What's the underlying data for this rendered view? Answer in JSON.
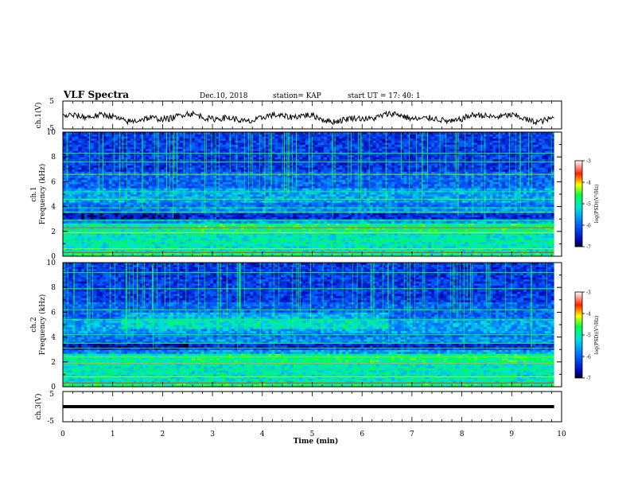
{
  "header": {
    "title": "VLF Spectra",
    "date": "Dec.10, 2018",
    "station": "station= KAP",
    "start": "start  UT =   17: 40: 1"
  },
  "chart_data": [
    {
      "type": "line",
      "ylabel": "ch.1(V)",
      "ylim": [
        -5,
        5
      ],
      "yticks": [
        "5",
        "-5"
      ],
      "xlim": [
        0,
        10
      ],
      "series_summary": "noisy waveform oscillating around -1 V, range about -3 to 2 V",
      "baseline": -1.0
    },
    {
      "type": "heatmap",
      "ylabel_top": "ch.1",
      "ylabel": "Frequency (kHz)",
      "ylim": [
        0,
        10
      ],
      "yticks": [
        "0",
        "2",
        "4",
        "6",
        "8",
        "10"
      ],
      "xlim": [
        0,
        10
      ],
      "colorbar": {
        "label": "log(PSD)(V²/Hz)",
        "ticks": [
          "-3",
          "-4",
          "-5",
          "-6",
          "-7"
        ],
        "range": [
          -7,
          -3
        ]
      }
    },
    {
      "type": "heatmap",
      "ylabel_top": "ch.2",
      "ylabel": "Frequency (kHz)",
      "ylim": [
        0,
        10
      ],
      "yticks": [
        "0",
        "2",
        "4",
        "6",
        "8",
        "10"
      ],
      "xlim": [
        0,
        10
      ],
      "colorbar": {
        "label": "log(PSD)(V²/Hz)",
        "ticks": [
          "-3",
          "-4",
          "-5",
          "-6",
          "-7"
        ],
        "range": [
          -7,
          -3
        ]
      }
    },
    {
      "type": "line",
      "ylabel": "ch.3(V)",
      "ylim": [
        -5,
        5
      ],
      "yticks": [
        "5",
        "-5"
      ],
      "xlim": [
        0,
        10
      ],
      "value": 0
    }
  ],
  "xaxis": {
    "label": "Time (min)",
    "ticks": [
      "0",
      "1",
      "2",
      "3",
      "4",
      "5",
      "6",
      "7",
      "8",
      "9",
      "10"
    ],
    "data_end": 9.85
  },
  "colors": {
    "spec_low": "#0a0a6e",
    "spec_high": "#ff2000",
    "trace": "#000000"
  }
}
